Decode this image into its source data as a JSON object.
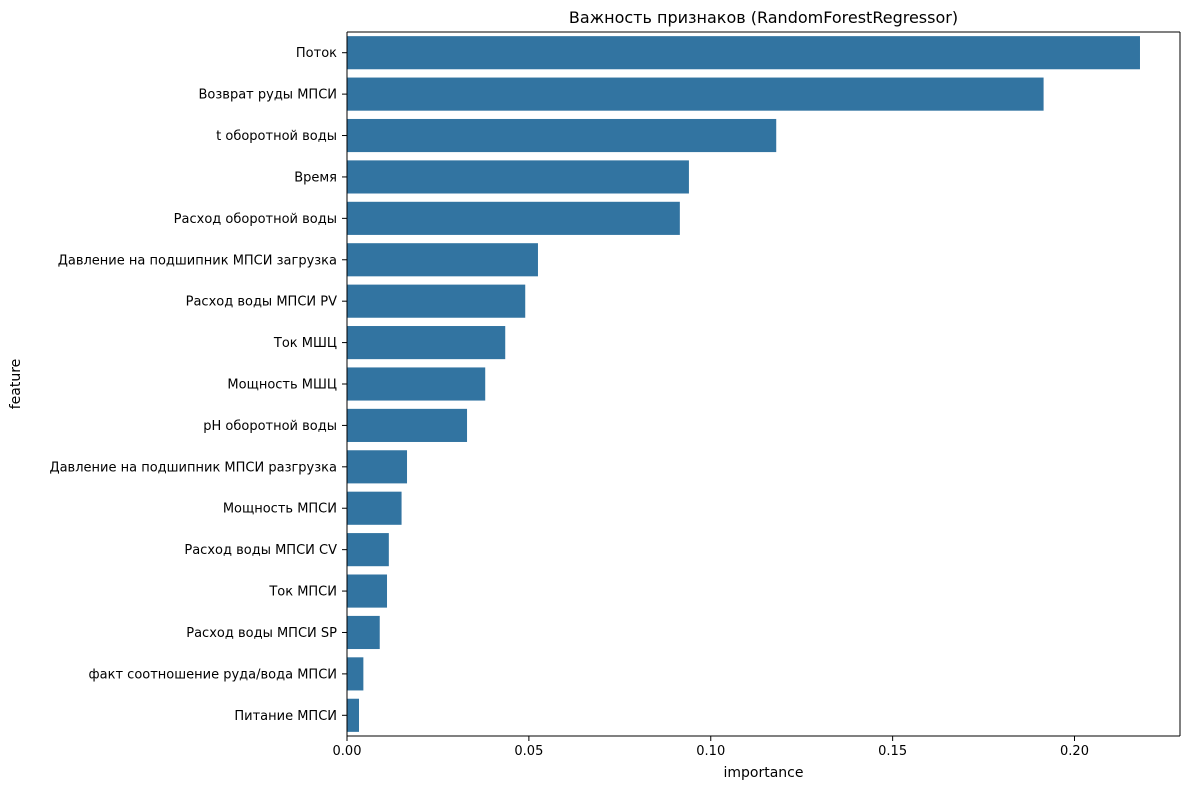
{
  "chart_data": {
    "type": "bar",
    "orientation": "horizontal",
    "title": "Важность признаков (RandomForestRegressor)",
    "xlabel": "importance",
    "ylabel": "feature",
    "xlim": [
      0,
      0.229
    ],
    "xticks": [
      0.0,
      0.05,
      0.1,
      0.15,
      0.2
    ],
    "xtick_labels": [
      "0.00",
      "0.05",
      "0.10",
      "0.15",
      "0.20"
    ],
    "grid": false,
    "bar_color": "#3274a1",
    "categories": [
      "Поток",
      "Возврат руды МПСИ",
      "t оборотной воды",
      "Время",
      "Расход оборотной воды",
      "Давление на подшипник МПСИ загрузка",
      "Расход воды МПСИ PV",
      "Ток МШЦ",
      "Мощность МШЦ",
      "pH оборотной воды",
      "Давление на подшипник МПСИ разгрузка",
      "Мощность МПСИ",
      "Расход воды МПСИ CV",
      "Ток МПСИ",
      "Расход воды МПСИ SP",
      "факт соотношение руда/вода МПСИ",
      "Питание МПСИ"
    ],
    "values": [
      0.218,
      0.1915,
      0.118,
      0.094,
      0.0915,
      0.0525,
      0.049,
      0.0435,
      0.038,
      0.033,
      0.0165,
      0.015,
      0.0115,
      0.011,
      0.009,
      0.0045,
      0.0033
    ]
  }
}
